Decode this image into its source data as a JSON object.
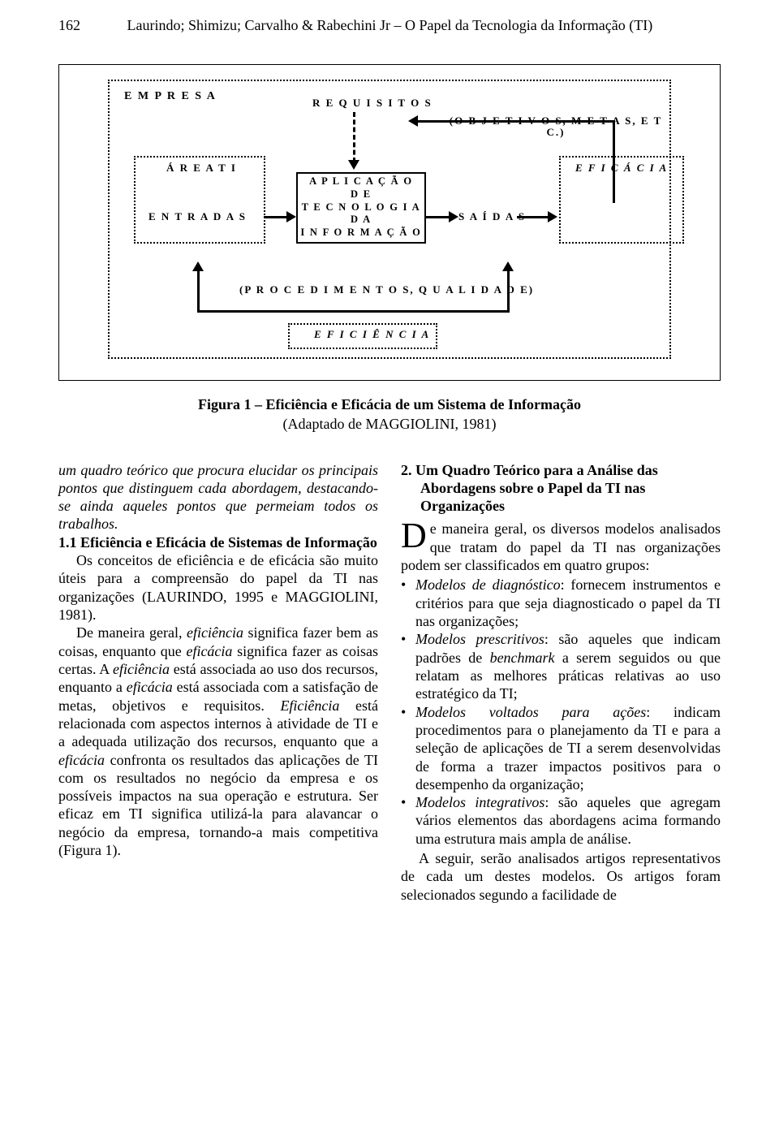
{
  "header": {
    "page_number": "162",
    "running_title": "Laurindo; Shimizu; Carvalho & Rabechini Jr – O Papel da Tecnologia da Informação (TI)"
  },
  "figure": {
    "type": "flowchart",
    "background_color": "#ffffff",
    "border_color": "#000000",
    "font_color": "#000000",
    "label_fontsize": 13,
    "outer_label": "E M P R E S A",
    "labels": {
      "area_ti": "Á R E A  T I",
      "entradas": "E N T R A D A S",
      "saidas": "S A Í D A S",
      "eficacia": "E F I C Á C I A",
      "eficiencia": "E F I C I Ê N C I A",
      "requisitos": "R E Q U I S I T O S",
      "objetivos": "(O B J E T I V O S,  M E T A S, E T C.)",
      "procedimentos": "(P R O C E D I M E N T O S,  Q U A L I D A D E)"
    },
    "center_box_lines": [
      "A P L I C A Ç Ã O",
      "D E",
      "T E C N O L O G I A",
      "D A",
      "I N F O R M A Ç Ã O"
    ],
    "caption_bold": "Figura 1 – Eficiência e Eficácia de um Sistema de Informação",
    "caption_plain": "(Adaptado de MAGGIOLINI, 1981)"
  },
  "left_column": {
    "intro_italic": "um quadro teórico que procura elucidar os principais pontos que distinguem cada aborda­gem, destacando-se ainda aqueles pontos que permeiam todos os trabalhos.",
    "section_heading": "1.1 Eficiência e Eficácia de Sistemas de Informação",
    "p1": "Os conceitos de eficiência e de eficácia são muito úteis para a compreensão do papel da TI nas organizações (LAURINDO, 1995 e MAGGIOLINI, 1981).",
    "p2_html": "De maneira geral, <em>eficiência</em> significa fazer bem as coisas, enquanto que <em>eficácia</em> significa fazer as coisas certas. A <em>eficiência</em> está associada ao uso dos recursos, enquanto a <em>eficácia</em> está associada com a satisfação de metas, objetivos e requisitos. <em>Eficiência</em> está relacionada com aspectos internos à atividade de TI e a adequada utilização dos recursos, enquanto que a <em>eficácia</em> confronta os resultados das aplicações de TI com os resultados no negócio da empresa e os possíveis impactos na sua operação e estrutura. Ser eficaz em TI significa utilizá-la para alavancar o negócio da empresa, tornando-a mais competitiva (Figura 1)."
  },
  "right_column": {
    "section_heading": "2. Um Quadro Teórico para a Análise das Abordagens sobre o Papel da TI nas Organizações",
    "drop_letter": "D",
    "drop_rest": "e maneira geral, os diversos modelos anali­sados que tratam do papel da TI nas organizações podem ser classificados em quatro grupos:",
    "bullets": [
      "<em>Modelos de diagnóstico</em>: fornecem instru­mentos e critérios para que seja diagnosticado o papel da TI nas organizações;",
      "<em>Modelos prescritivos</em>: são aqueles que indicam padrões de <em>benchmark</em> a serem seguidos ou que relatam as melhores práticas relativas ao uso estratégico da TI;",
      "<em>Modelos voltados para ações</em>: indicam procedimentos para o planejamento da TI e para a seleção de aplicações de TI a serem desenvolvidas de forma a trazer impactos positivos para o desempenho da organização;",
      "<em>Modelos integrativos</em>: são aqueles que agregam vários elementos das abordagens acima for­mando uma estrutura mais ampla de análise."
    ],
    "closing": "A seguir, serão analisados artigos representa­tivos de cada um destes modelos. Os artigos foram selecionados segundo a facilidade de"
  }
}
